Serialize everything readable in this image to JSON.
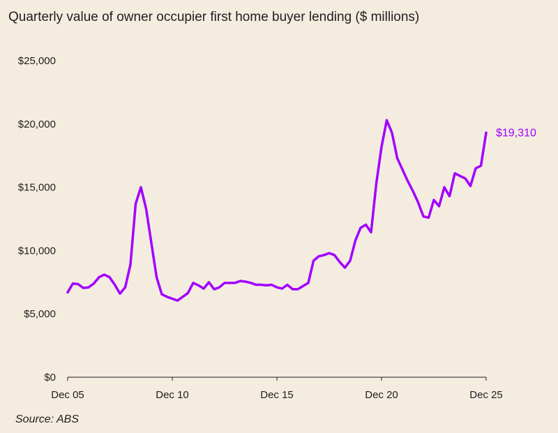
{
  "title": "Quarterly value of owner occupier first home buyer lending ($ millions)",
  "source": "Source: ABS",
  "colors": {
    "line": "#a100ff",
    "background": "#f5ece0",
    "axis": "#1e1e1e"
  },
  "chart_data": {
    "type": "line",
    "title": "Quarterly value of owner occupier first home buyer lending ($ millions)",
    "xlabel": "",
    "ylabel": "",
    "grid": false,
    "ylim": [
      0,
      25000
    ],
    "xlim": [
      "Dec 05",
      "Dec 25"
    ],
    "y_ticks": [
      0,
      5000,
      10000,
      15000,
      20000,
      25000
    ],
    "y_tick_labels": [
      "$0",
      "$5,000",
      "$10,000",
      "$15,000",
      "$20,000",
      "$25,000"
    ],
    "x_tick_labels": [
      "Dec 05",
      "Dec 10",
      "Dec 15",
      "Dec 20",
      "Dec 25"
    ],
    "end_label": "$19,310",
    "series": [
      {
        "values": [
          6700,
          7400,
          7350,
          7050,
          7100,
          7400,
          7900,
          8100,
          7900,
          7300,
          6600,
          7100,
          8900,
          13700,
          15000,
          13300,
          10600,
          7900,
          6550,
          6350,
          6200,
          6050,
          6350,
          6650,
          7450,
          7250,
          7000,
          7500,
          6950,
          7100,
          7450,
          7450,
          7450,
          7600,
          7550,
          7450,
          7300,
          7300,
          7250,
          7300,
          7100,
          7000,
          7300,
          6950,
          6950,
          7200,
          7450,
          9200,
          9550,
          9650,
          9800,
          9650,
          9100,
          8650,
          9200,
          10800,
          11800,
          12050,
          11450,
          15300,
          18200,
          20300,
          19300,
          17300,
          16400,
          15500,
          14700,
          13800,
          12700,
          12600,
          14000,
          13500,
          15000,
          14300,
          16100,
          15900,
          15700,
          15100,
          16500,
          16700,
          19310
        ]
      }
    ]
  }
}
